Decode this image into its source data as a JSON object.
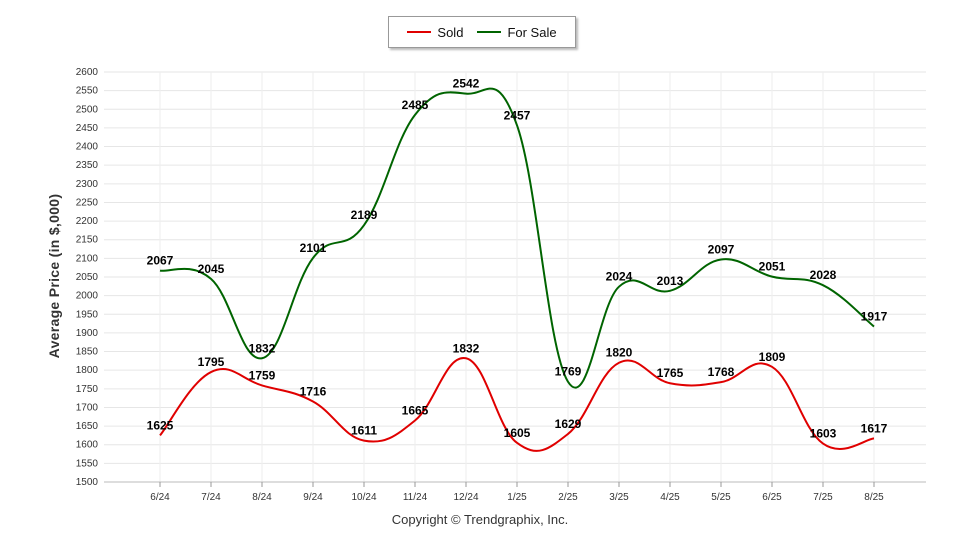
{
  "chart_data": {
    "type": "line",
    "title": "",
    "xlabel": "",
    "ylabel": "Average Price (in $,000)",
    "ylim": [
      1500,
      2600
    ],
    "ytick_step": 50,
    "grid": true,
    "legend_placement": "top-center",
    "categories": [
      "6/24",
      "7/24",
      "8/24",
      "9/24",
      "10/24",
      "11/24",
      "12/24",
      "1/25",
      "2/25",
      "3/25",
      "4/25",
      "5/25",
      "6/25",
      "7/25",
      "8/25"
    ],
    "series": [
      {
        "name": "Sold",
        "color": "#e00000",
        "values": [
          1625,
          1795,
          1759,
          1716,
          1611,
          1665,
          1832,
          1605,
          1629,
          1820,
          1765,
          1768,
          1809,
          1603,
          1617
        ]
      },
      {
        "name": "For Sale",
        "color": "#006400",
        "values": [
          2067,
          2045,
          1832,
          2101,
          2189,
          2485,
          2542,
          2457,
          1769,
          2024,
          2013,
          2097,
          2051,
          2028,
          1917
        ]
      }
    ]
  },
  "footer": {
    "copyright": "Copyright © Trendgraphix, Inc."
  }
}
